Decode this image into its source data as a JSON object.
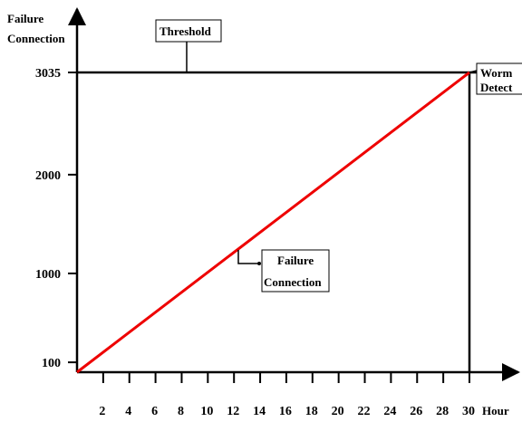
{
  "chart_data": {
    "type": "line",
    "title": "",
    "ylabel_line1": "Failure",
    "ylabel_line2": "Connection",
    "xlabel": "Hour",
    "xlim": [
      0,
      30
    ],
    "ylim": [
      0,
      3035
    ],
    "x_ticks": [
      2,
      4,
      6,
      8,
      10,
      12,
      14,
      16,
      18,
      20,
      22,
      24,
      26,
      28,
      30
    ],
    "y_ticks": [
      100,
      1000,
      2000,
      3035
    ],
    "series": [
      {
        "name": "Failure Connection",
        "color": "#ee0000",
        "x": [
          0,
          30
        ],
        "y": [
          0,
          3035
        ]
      }
    ],
    "threshold": {
      "value": 3035
    },
    "annotations": {
      "threshold_label": "Threshold",
      "series_label_line1": "Failure",
      "series_label_line2": "Connection",
      "worm_label_line1": "Worm",
      "worm_label_line2": "Detect"
    },
    "grid": false
  }
}
